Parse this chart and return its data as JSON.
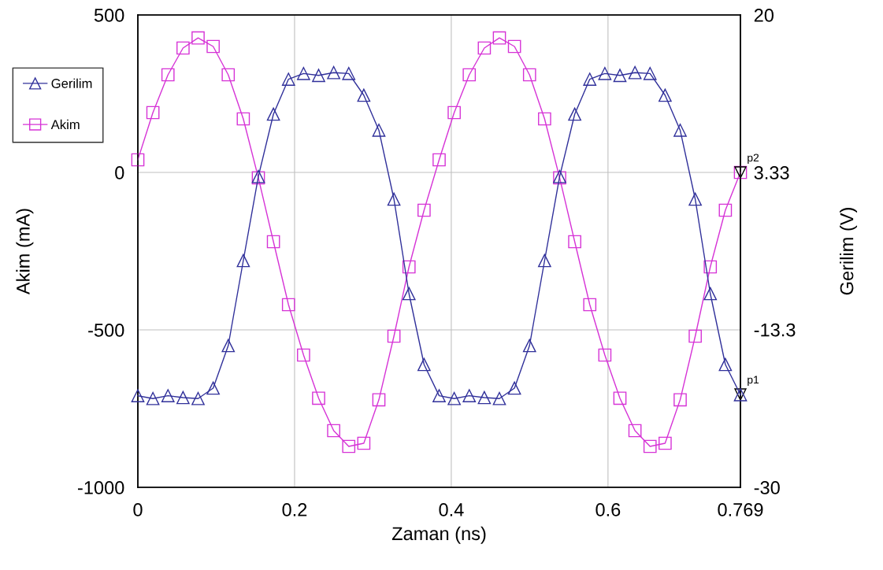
{
  "chart_data": {
    "type": "line",
    "xlabel": "Zaman (ns)",
    "ylabel": "Akim (mA)",
    "y2label": "Gerilim (V)",
    "x": [
      0,
      0.019225,
      0.03845,
      0.057675,
      0.0769,
      0.096125,
      0.11535,
      0.134575,
      0.1538,
      0.173025,
      0.19225,
      0.211475,
      0.2307,
      0.249925,
      0.26915,
      0.288375,
      0.3076,
      0.326825,
      0.34605,
      0.365275,
      0.3845,
      0.403725,
      0.42295,
      0.442175,
      0.4614,
      0.480625,
      0.49985,
      0.519075,
      0.5383,
      0.557525,
      0.57675,
      0.595975,
      0.6152,
      0.634425,
      0.65365,
      0.672875,
      0.6921,
      0.711325,
      0.73055,
      0.749775,
      0.769
    ],
    "series": [
      {
        "name": "Gerilim",
        "color": "#30309a",
        "axis": "y2",
        "marker": "triangle",
        "values": [
          -20.3,
          -20.6,
          -20.3,
          -20.5,
          -20.6,
          -19.5,
          -15,
          -6,
          2.9,
          9.5,
          13.2,
          13.8,
          13.6,
          13.9,
          13.8,
          11.5,
          7.8,
          0.5,
          -9.5,
          -17,
          -20.3,
          -20.6,
          -20.3,
          -20.5,
          -20.6,
          -19.5,
          -15,
          -6,
          2.9,
          9.5,
          13.2,
          13.8,
          13.6,
          13.9,
          13.8,
          11.5,
          7.8,
          0.5,
          -9.5,
          -17,
          -20.2
        ]
      },
      {
        "name": "Akim",
        "color": "#d633d6",
        "marker": "square",
        "values": [
          40,
          190,
          310,
          395,
          427,
          400,
          310,
          170,
          -17,
          -220,
          -420,
          -580,
          -717,
          -820,
          -870,
          -860,
          -722,
          -520,
          -300,
          -120,
          40,
          190,
          310,
          395,
          427,
          400,
          310,
          170,
          -17,
          -220,
          -420,
          -580,
          -717,
          -820,
          -870,
          -860,
          -722,
          -520,
          -300,
          -120,
          0
        ]
      }
    ],
    "xlim": [
      0,
      0.769
    ],
    "xticks": [
      0,
      0.2,
      0.4,
      0.6,
      0.769
    ],
    "ylim": [
      -1000,
      500
    ],
    "yticks": [
      -1000,
      -500,
      0,
      500
    ],
    "y2lim": [
      -30,
      20
    ],
    "y2ticks": [
      -30,
      -13.3,
      3.33,
      20
    ],
    "annotations": [
      {
        "text": "p1",
        "x": 0.769,
        "y": -705
      },
      {
        "text": "p2",
        "x": 0.769,
        "y": 0
      }
    ],
    "grid": true,
    "legend": "top left",
    "line_style": "solid"
  }
}
